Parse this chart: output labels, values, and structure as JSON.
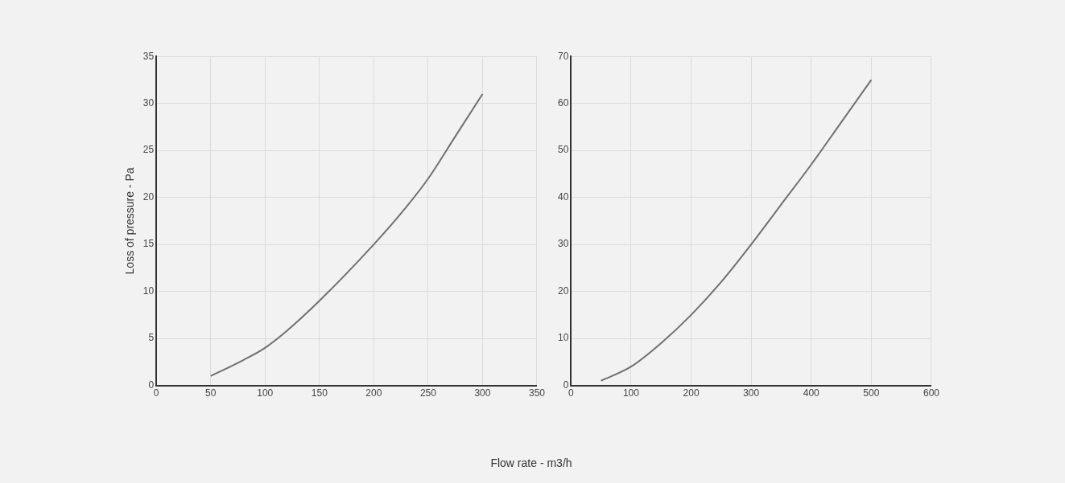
{
  "chart_data": [
    {
      "type": "line",
      "xlabel": "Flow rate - m3/h",
      "ylabel": "Loss of pressure - Pa",
      "xlim": [
        0,
        350
      ],
      "xticks": [
        0,
        50,
        100,
        150,
        200,
        250,
        300,
        350
      ],
      "ylim": [
        0,
        35
      ],
      "yticks": [
        0,
        5,
        10,
        15,
        20,
        25,
        30,
        35
      ],
      "grid": true,
      "marker": "none",
      "legend": false,
      "series": [
        {
          "color": "#707070",
          "x": [
            50,
            80,
            100,
            120,
            150,
            200,
            230,
            250,
            275,
            300
          ],
          "values": [
            1,
            2.7,
            4,
            5.8,
            9,
            15,
            19,
            22,
            26.5,
            31
          ]
        }
      ]
    },
    {
      "type": "line",
      "xlim": [
        0,
        600
      ],
      "xticks": [
        0,
        100,
        200,
        300,
        400,
        500,
        600
      ],
      "ylim": [
        0,
        70
      ],
      "yticks": [
        0,
        10,
        20,
        30,
        40,
        50,
        60,
        70
      ],
      "grid": true,
      "marker": "none",
      "legend": false,
      "series": [
        {
          "color": "#707070",
          "x": [
            50,
            100,
            150,
            200,
            250,
            300,
            350,
            400,
            450,
            500
          ],
          "values": [
            1,
            4,
            9,
            15,
            22,
            30,
            38.5,
            47,
            56,
            65
          ]
        }
      ]
    }
  ]
}
